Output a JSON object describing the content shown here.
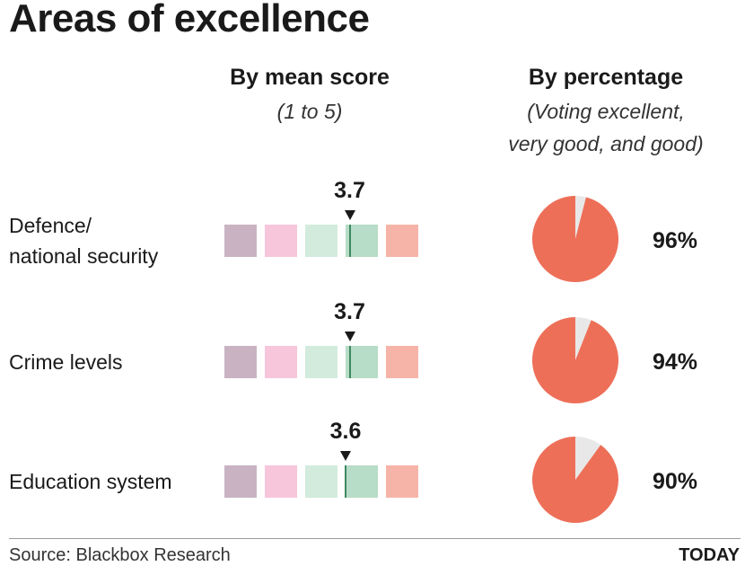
{
  "title": "Areas of excellence",
  "columns": {
    "mean": {
      "heading": "By mean score",
      "subtitle": "(1 to 5)"
    },
    "pct": {
      "heading": "By percentage",
      "subtitle_lines": [
        "(Voting excellent,",
        "very good, and good)"
      ]
    }
  },
  "scale_colors": [
    "#c9b3c2",
    "#f7c6db",
    "#d2ebdd",
    "#b7dcc7",
    "#f6b4a9"
  ],
  "marker_color": "#3e8a62",
  "pie_color": "#ee6f58",
  "pie_remainder_color": "#e8e8e8",
  "chart_data": {
    "type": "table",
    "scale_range": [
      1,
      5
    ],
    "rows": [
      {
        "label_lines": [
          "Defence/",
          "national security"
        ],
        "mean_score": 3.7,
        "mean_label": "3.7",
        "percentage": 96,
        "percentage_label": "96%"
      },
      {
        "label_lines": [
          "Crime levels"
        ],
        "mean_score": 3.7,
        "mean_label": "3.7",
        "percentage": 94,
        "percentage_label": "94%"
      },
      {
        "label_lines": [
          "Education system"
        ],
        "mean_score": 3.6,
        "mean_label": "3.6",
        "percentage": 90,
        "percentage_label": "90%"
      }
    ]
  },
  "footer": {
    "source": "Source: Blackbox Research",
    "brand": "TODAY"
  }
}
